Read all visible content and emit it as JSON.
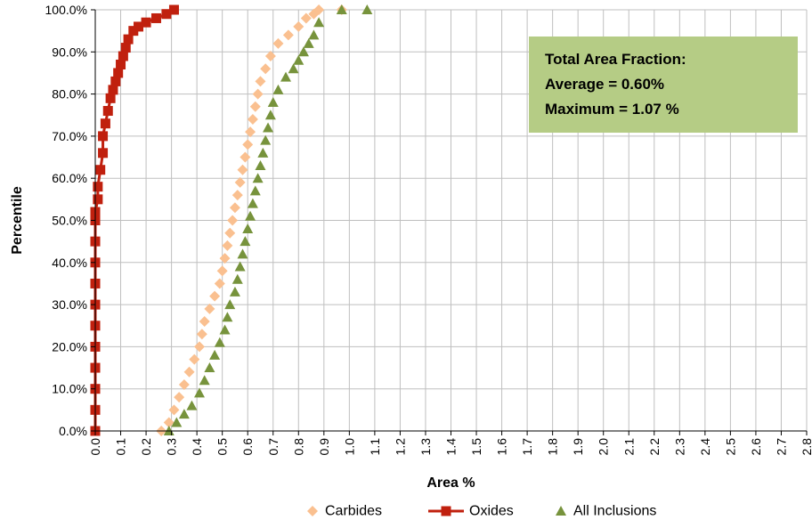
{
  "chart_data": {
    "type": "scatter",
    "xlabel": "Area %",
    "ylabel": "Percentile",
    "xlim": [
      0.0,
      2.8
    ],
    "ylim": [
      0,
      100
    ],
    "x_ticks": [
      "0.0",
      "0.1",
      "0.2",
      "0.3",
      "0.4",
      "0.5",
      "0.6",
      "0.7",
      "0.8",
      "0.9",
      "1.0",
      "1.1",
      "1.2",
      "1.3",
      "1.4",
      "1.5",
      "1.6",
      "1.7",
      "1.8",
      "1.9",
      "2.0",
      "2.1",
      "2.2",
      "2.3",
      "2.4",
      "2.5",
      "2.6",
      "2.7",
      "2.8"
    ],
    "y_ticks": [
      "0.0%",
      "10.0%",
      "20.0%",
      "30.0%",
      "40.0%",
      "50.0%",
      "60.0%",
      "70.0%",
      "80.0%",
      "90.0%",
      "100.0%"
    ],
    "grid": true,
    "legend_position": "bottom",
    "annotation": {
      "lines": [
        "Total  Area Fraction:",
        "Average = 0.60%",
        "Maximum =  1.07 %"
      ],
      "background": "#b5cc85"
    },
    "series": [
      {
        "name": "Carbides",
        "marker": "diamond",
        "color": "#fac090",
        "line": false,
        "x": [
          0.26,
          0.29,
          0.31,
          0.33,
          0.35,
          0.37,
          0.39,
          0.41,
          0.42,
          0.43,
          0.45,
          0.47,
          0.49,
          0.5,
          0.51,
          0.52,
          0.53,
          0.54,
          0.55,
          0.56,
          0.57,
          0.58,
          0.59,
          0.6,
          0.61,
          0.62,
          0.63,
          0.64,
          0.65,
          0.67,
          0.69,
          0.72,
          0.76,
          0.8,
          0.83,
          0.86,
          0.88,
          0.97
        ],
        "y": [
          0,
          2,
          5,
          8,
          11,
          14,
          17,
          20,
          23,
          26,
          29,
          32,
          35,
          38,
          41,
          44,
          47,
          50,
          53,
          56,
          59,
          62,
          65,
          68,
          71,
          74,
          77,
          80,
          83,
          86,
          89,
          92,
          94,
          96,
          98,
          99,
          100,
          100
        ]
      },
      {
        "name": "Oxides",
        "marker": "square",
        "color": "#c0200e",
        "line": true,
        "x": [
          0.0,
          0.0,
          0.0,
          0.0,
          0.0,
          0.0,
          0.0,
          0.0,
          0.0,
          0.0,
          0.0,
          0.0,
          0.01,
          0.01,
          0.02,
          0.03,
          0.03,
          0.04,
          0.05,
          0.06,
          0.07,
          0.08,
          0.09,
          0.1,
          0.11,
          0.12,
          0.13,
          0.15,
          0.17,
          0.2,
          0.24,
          0.28,
          0.31
        ],
        "y": [
          0,
          5,
          10,
          15,
          20,
          25,
          30,
          35,
          40,
          45,
          50,
          52,
          55,
          58,
          62,
          66,
          70,
          73,
          76,
          79,
          81,
          83,
          85,
          87,
          89,
          91,
          93,
          95,
          96,
          97,
          98,
          99,
          100
        ]
      },
      {
        "name": "All Inclusions",
        "marker": "triangle",
        "color": "#77933c",
        "line": false,
        "x": [
          0.29,
          0.32,
          0.35,
          0.38,
          0.41,
          0.43,
          0.45,
          0.47,
          0.49,
          0.51,
          0.52,
          0.53,
          0.55,
          0.56,
          0.57,
          0.58,
          0.59,
          0.6,
          0.61,
          0.62,
          0.63,
          0.64,
          0.65,
          0.66,
          0.67,
          0.68,
          0.69,
          0.7,
          0.72,
          0.75,
          0.78,
          0.8,
          0.82,
          0.84,
          0.86,
          0.88,
          0.97,
          1.07
        ],
        "y": [
          0,
          2,
          4,
          6,
          9,
          12,
          15,
          18,
          21,
          24,
          27,
          30,
          33,
          36,
          39,
          42,
          45,
          48,
          51,
          54,
          57,
          60,
          63,
          66,
          69,
          72,
          75,
          78,
          81,
          84,
          86,
          88,
          90,
          92,
          94,
          97,
          100,
          100
        ]
      }
    ]
  }
}
